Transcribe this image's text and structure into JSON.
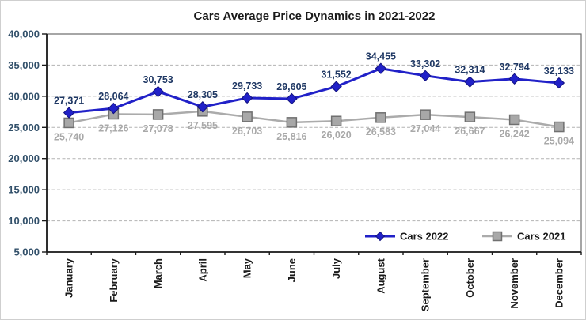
{
  "chart_data": {
    "type": "line",
    "title": "Cars Average Price Dynamics in 2021-2022",
    "categories": [
      "January",
      "February",
      "March",
      "April",
      "May",
      "June",
      "July",
      "August",
      "September",
      "October",
      "November",
      "December"
    ],
    "series": [
      {
        "name": "Cars 2022",
        "marker": "diamond",
        "color": "#2121c8",
        "marker_fill": "#2121c8",
        "marker_stroke": "#12127f",
        "label_color": "#1f3864",
        "label_position": "above",
        "line_width": 3,
        "values": [
          27371,
          28064,
          30753,
          28305,
          29733,
          29605,
          31552,
          34455,
          33302,
          32314,
          32794,
          32133
        ]
      },
      {
        "name": "Cars 2021",
        "marker": "square",
        "color": "#ababab",
        "marker_fill": "#a8a8a8",
        "marker_stroke": "#707070",
        "label_color": "#a9a9a9",
        "label_position": "below",
        "line_width": 2.5,
        "values": [
          25740,
          27126,
          27078,
          27595,
          26703,
          25816,
          26020,
          26583,
          27044,
          26667,
          26242,
          25094
        ]
      }
    ],
    "ylim": [
      5000,
      40000
    ],
    "y_tick_step": 5000,
    "y_tick_labels": [
      "5,000",
      "10,000",
      "15,000",
      "20,000",
      "25,000",
      "30,000",
      "35,000",
      "40,000"
    ],
    "grid": "horizontal-dashed",
    "category_label_rotation": -90,
    "legend": {
      "position": "inside-bottom-right",
      "entries": [
        "Cars 2022",
        "Cars 2021"
      ]
    }
  }
}
